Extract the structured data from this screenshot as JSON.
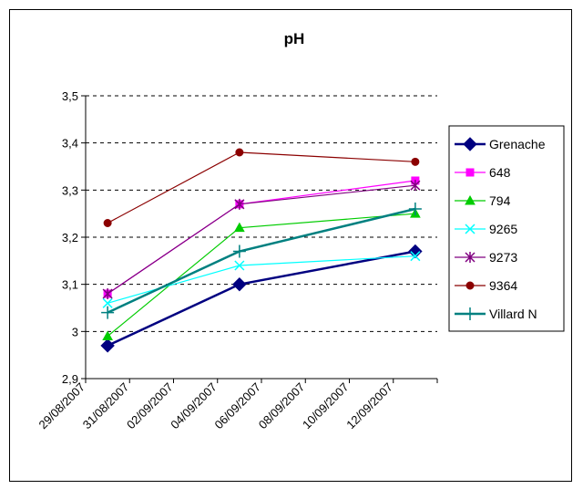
{
  "chart_data": {
    "type": "line",
    "title": "pH",
    "xlabel": "",
    "ylabel": "",
    "ylim": [
      2.9,
      3.5
    ],
    "y_ticks": [
      "2,9",
      "3",
      "3,1",
      "3,2",
      "3,3",
      "3,4",
      "3,5"
    ],
    "x_range": [
      "2007-08-29",
      "2007-09-14"
    ],
    "x_ticks": [
      "29/08/2007",
      "31/08/2007",
      "02/09/2007",
      "04/09/2007",
      "06/09/2007",
      "08/09/2007",
      "10/09/2007",
      "12/09/2007"
    ],
    "x": [
      "2007-08-30",
      "2007-09-05",
      "2007-09-13"
    ],
    "grid": "horizontal dashed",
    "legend_position": "right",
    "series": [
      {
        "name": "Grenache",
        "values": [
          2.97,
          3.1,
          3.17
        ],
        "color": "#000080",
        "marker": "diamond"
      },
      {
        "name": "648",
        "values": [
          3.08,
          3.27,
          3.32
        ],
        "color": "#ff00ff",
        "marker": "square"
      },
      {
        "name": "794",
        "values": [
          2.99,
          3.22,
          3.25
        ],
        "color": "#00cc00",
        "marker": "triangle"
      },
      {
        "name": "9265",
        "values": [
          3.06,
          3.14,
          3.16
        ],
        "color": "#00ffff",
        "marker": "x"
      },
      {
        "name": "9273",
        "values": [
          3.08,
          3.27,
          3.31
        ],
        "color": "#800080",
        "marker": "star"
      },
      {
        "name": "9364",
        "values": [
          3.23,
          3.38,
          3.36
        ],
        "color": "#8b0000",
        "marker": "circle"
      },
      {
        "name": "Villard N",
        "values": [
          3.04,
          3.17,
          3.26
        ],
        "color": "#008080",
        "marker": "plus"
      }
    ]
  }
}
